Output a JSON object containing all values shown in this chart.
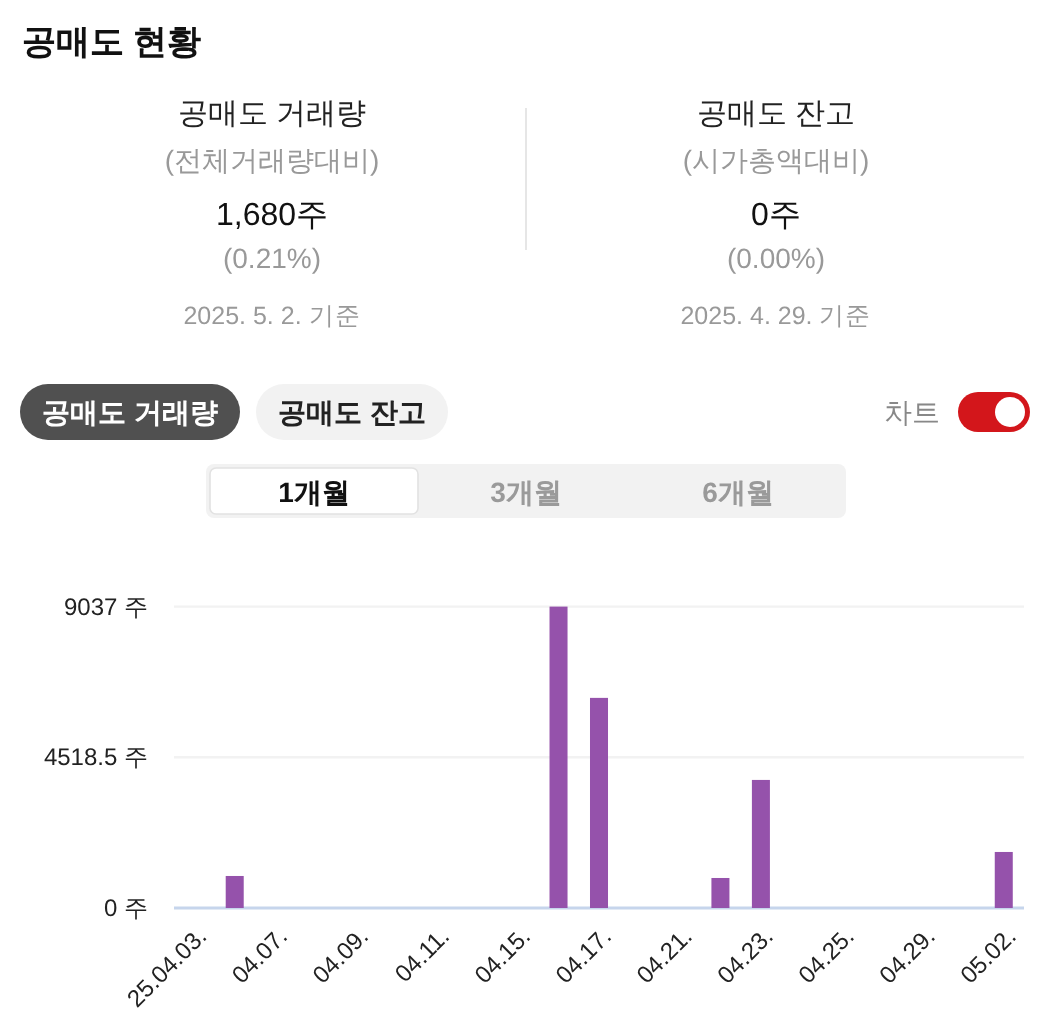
{
  "chart_data": [
    {
      "type": "other",
      "title": "공매도 현황",
      "annotations": [
        "공매도 거래량",
        "(전체거래량대비)",
        "1,680주",
        "(0.21%)",
        "2025. 5. 2. 기준",
        "공매도 잔고",
        "(시가총액대비)",
        "0주",
        "(0.00%)",
        "2025. 4. 29. 기준"
      ]
    },
    {
      "type": "bar",
      "annotations": [
        "공매도 거래량",
        "공매도 잔고",
        "차트",
        "1개월",
        "3개월",
        "6개월"
      ],
      "categories": [
        "25.04.03.",
        null,
        "04.07.",
        null,
        "04.09.",
        null,
        "04.11.",
        null,
        "04.15.",
        null,
        "04.17.",
        null,
        "04.21.",
        null,
        "04.23.",
        null,
        "04.25.",
        null,
        "04.29.",
        null,
        "05.02."
      ],
      "values": [
        0,
        960,
        0,
        0,
        0,
        0,
        0,
        0,
        0,
        9037,
        6300,
        0,
        0,
        900,
        3840,
        0,
        0,
        0,
        0,
        0,
        1680
      ],
      "color": "#9552ab",
      "ylim": [
        0,
        9037
      ],
      "yticks": [
        {
          "value": 9037,
          "label": "9037 주"
        },
        {
          "value": 4518.5,
          "label": "4518.5 주"
        },
        {
          "value": 0,
          "label": "0 주"
        }
      ],
      "grid": "y"
    }
  ]
}
